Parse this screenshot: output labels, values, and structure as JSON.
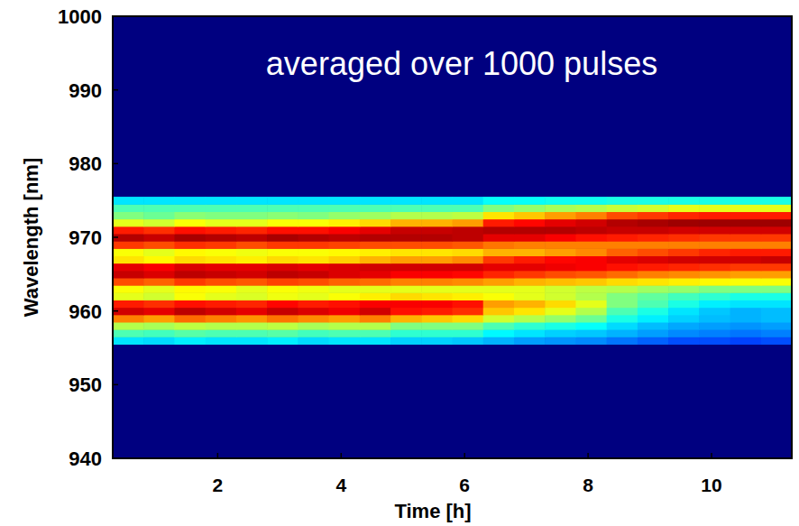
{
  "chart_data": {
    "type": "heatmap",
    "annotation": "averaged over 1000 pulses",
    "x_label": "Time [h]",
    "y_label": "Wavelength [nm]",
    "xlim": [
      0.3,
      11.3
    ],
    "ylim": [
      940,
      1000
    ],
    "xticks": [
      2,
      4,
      6,
      8,
      10
    ],
    "yticks": [
      940,
      950,
      960,
      970,
      980,
      990,
      1000
    ],
    "zlim": [
      0,
      1
    ],
    "x": [
      0.55,
      1.05,
      1.55,
      2.05,
      2.55,
      3.05,
      3.55,
      4.05,
      4.55,
      5.05,
      5.55,
      6.05,
      6.55,
      7.05,
      7.55,
      8.05,
      8.55,
      9.05,
      9.55,
      10.05,
      10.55,
      11.05
    ],
    "y": [
      956,
      957,
      958,
      959,
      960,
      961,
      962,
      963,
      964,
      965,
      966,
      967,
      968,
      969,
      970,
      971,
      972,
      973,
      974,
      975
    ],
    "z": [
      [
        0.35,
        0.34,
        0.36,
        0.35,
        0.35,
        0.36,
        0.34,
        0.35,
        0.35,
        0.33,
        0.33,
        0.32,
        0.3,
        0.28,
        0.27,
        0.26,
        0.24,
        0.22,
        0.2,
        0.2,
        0.19,
        0.2
      ],
      [
        0.45,
        0.44,
        0.46,
        0.45,
        0.45,
        0.46,
        0.44,
        0.45,
        0.45,
        0.42,
        0.42,
        0.42,
        0.37,
        0.35,
        0.33,
        0.32,
        0.3,
        0.28,
        0.26,
        0.25,
        0.24,
        0.25
      ],
      [
        0.55,
        0.54,
        0.56,
        0.55,
        0.55,
        0.56,
        0.54,
        0.55,
        0.55,
        0.5,
        0.5,
        0.5,
        0.45,
        0.42,
        0.4,
        0.38,
        0.34,
        0.31,
        0.29,
        0.28,
        0.27,
        0.28
      ],
      [
        0.75,
        0.72,
        0.77,
        0.75,
        0.73,
        0.76,
        0.74,
        0.72,
        0.75,
        0.7,
        0.68,
        0.66,
        0.58,
        0.55,
        0.52,
        0.48,
        0.4,
        0.36,
        0.33,
        0.31,
        0.3,
        0.31
      ],
      [
        0.92,
        0.9,
        0.94,
        0.92,
        0.9,
        0.93,
        0.91,
        0.89,
        0.92,
        0.86,
        0.85,
        0.83,
        0.68,
        0.65,
        0.6,
        0.55,
        0.45,
        0.4,
        0.35,
        0.32,
        0.3,
        0.31
      ],
      [
        0.85,
        0.83,
        0.86,
        0.85,
        0.84,
        0.87,
        0.85,
        0.86,
        0.88,
        0.88,
        0.88,
        0.86,
        0.72,
        0.7,
        0.66,
        0.6,
        0.5,
        0.45,
        0.4,
        0.36,
        0.35,
        0.35
      ],
      [
        0.6,
        0.58,
        0.62,
        0.6,
        0.59,
        0.61,
        0.6,
        0.62,
        0.64,
        0.66,
        0.65,
        0.64,
        0.62,
        0.6,
        0.58,
        0.55,
        0.5,
        0.47,
        0.44,
        0.42,
        0.4,
        0.4
      ],
      [
        0.62,
        0.6,
        0.63,
        0.62,
        0.6,
        0.62,
        0.61,
        0.6,
        0.6,
        0.6,
        0.6,
        0.6,
        0.6,
        0.6,
        0.58,
        0.56,
        0.55,
        0.53,
        0.52,
        0.5,
        0.5,
        0.5
      ],
      [
        0.8,
        0.78,
        0.82,
        0.8,
        0.79,
        0.81,
        0.8,
        0.78,
        0.77,
        0.75,
        0.75,
        0.74,
        0.72,
        0.7,
        0.69,
        0.68,
        0.66,
        0.65,
        0.64,
        0.63,
        0.62,
        0.62
      ],
      [
        0.93,
        0.91,
        0.94,
        0.93,
        0.92,
        0.94,
        0.93,
        0.91,
        0.9,
        0.88,
        0.88,
        0.87,
        0.84,
        0.82,
        0.8,
        0.79,
        0.77,
        0.75,
        0.74,
        0.73,
        0.72,
        0.72
      ],
      [
        0.9,
        0.88,
        0.91,
        0.9,
        0.9,
        0.91,
        0.9,
        0.91,
        0.92,
        0.92,
        0.92,
        0.92,
        0.9,
        0.9,
        0.89,
        0.88,
        0.86,
        0.85,
        0.84,
        0.83,
        0.82,
        0.82
      ],
      [
        0.65,
        0.63,
        0.66,
        0.65,
        0.64,
        0.66,
        0.65,
        0.67,
        0.7,
        0.72,
        0.72,
        0.74,
        0.82,
        0.85,
        0.87,
        0.88,
        0.9,
        0.91,
        0.92,
        0.92,
        0.92,
        0.93
      ],
      [
        0.62,
        0.6,
        0.63,
        0.62,
        0.61,
        0.62,
        0.62,
        0.63,
        0.64,
        0.65,
        0.65,
        0.66,
        0.7,
        0.7,
        0.72,
        0.74,
        0.78,
        0.8,
        0.82,
        0.84,
        0.85,
        0.85
      ],
      [
        0.82,
        0.8,
        0.83,
        0.82,
        0.8,
        0.82,
        0.82,
        0.81,
        0.8,
        0.8,
        0.8,
        0.79,
        0.76,
        0.75,
        0.75,
        0.75,
        0.75,
        0.75,
        0.75,
        0.75,
        0.75,
        0.75
      ],
      [
        0.95,
        0.93,
        0.96,
        0.95,
        0.94,
        0.96,
        0.95,
        0.94,
        0.95,
        0.95,
        0.95,
        0.94,
        0.9,
        0.9,
        0.88,
        0.86,
        0.85,
        0.84,
        0.83,
        0.82,
        0.82,
        0.82
      ],
      [
        0.85,
        0.83,
        0.86,
        0.85,
        0.84,
        0.86,
        0.86,
        0.88,
        0.9,
        0.93,
        0.93,
        0.94,
        0.95,
        0.95,
        0.95,
        0.94,
        0.93,
        0.93,
        0.92,
        0.92,
        0.92,
        0.92
      ],
      [
        0.6,
        0.58,
        0.62,
        0.6,
        0.6,
        0.62,
        0.62,
        0.64,
        0.66,
        0.7,
        0.7,
        0.72,
        0.85,
        0.87,
        0.9,
        0.92,
        0.95,
        0.96,
        0.97,
        0.97,
        0.97,
        0.97
      ],
      [
        0.5,
        0.48,
        0.51,
        0.5,
        0.5,
        0.51,
        0.5,
        0.52,
        0.53,
        0.55,
        0.55,
        0.56,
        0.65,
        0.68,
        0.72,
        0.75,
        0.8,
        0.82,
        0.84,
        0.85,
        0.85,
        0.85
      ],
      [
        0.45,
        0.45,
        0.45,
        0.45,
        0.45,
        0.45,
        0.45,
        0.45,
        0.45,
        0.45,
        0.45,
        0.45,
        0.5,
        0.52,
        0.54,
        0.55,
        0.57,
        0.58,
        0.6,
        0.6,
        0.6,
        0.6
      ],
      [
        0.35,
        0.35,
        0.35,
        0.35,
        0.35,
        0.35,
        0.35,
        0.35,
        0.35,
        0.35,
        0.35,
        0.35,
        0.38,
        0.38,
        0.39,
        0.39,
        0.4,
        0.4,
        0.4,
        0.4,
        0.4,
        0.4
      ]
    ]
  }
}
